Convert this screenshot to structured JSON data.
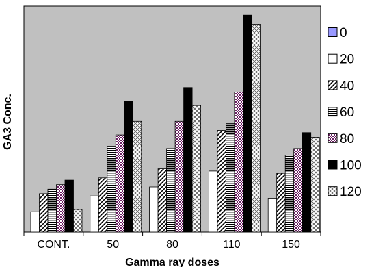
{
  "chart_data": {
    "type": "bar",
    "title": "",
    "xlabel": "Gamma ray doses",
    "ylabel": "GA3 Conc.",
    "categories": [
      "CONT.",
      "50",
      "80",
      "110",
      "150"
    ],
    "ylim": [
      0,
      100
    ],
    "grid": false,
    "legend_position": "right",
    "plot_background": "#c0c0c0",
    "series": [
      {
        "name": "0",
        "pattern": "solid-blue",
        "values": [
          0,
          0,
          0,
          0,
          0
        ]
      },
      {
        "name": "20",
        "pattern": "solid-white",
        "values": [
          9,
          16,
          20,
          27,
          15
        ]
      },
      {
        "name": "40",
        "pattern": "diagonal-hatch",
        "values": [
          17,
          24,
          28,
          45,
          26
        ]
      },
      {
        "name": "60",
        "pattern": "horizontal-lines",
        "values": [
          19,
          38,
          37,
          48,
          34
        ]
      },
      {
        "name": "80",
        "pattern": "purple-check",
        "values": [
          21,
          43,
          49,
          62,
          37
        ]
      },
      {
        "name": "100",
        "pattern": "solid-black",
        "values": [
          23,
          58,
          64,
          96,
          44
        ]
      },
      {
        "name": "120",
        "pattern": "cross-hatch",
        "values": [
          10,
          49,
          56,
          92,
          42
        ]
      }
    ]
  }
}
